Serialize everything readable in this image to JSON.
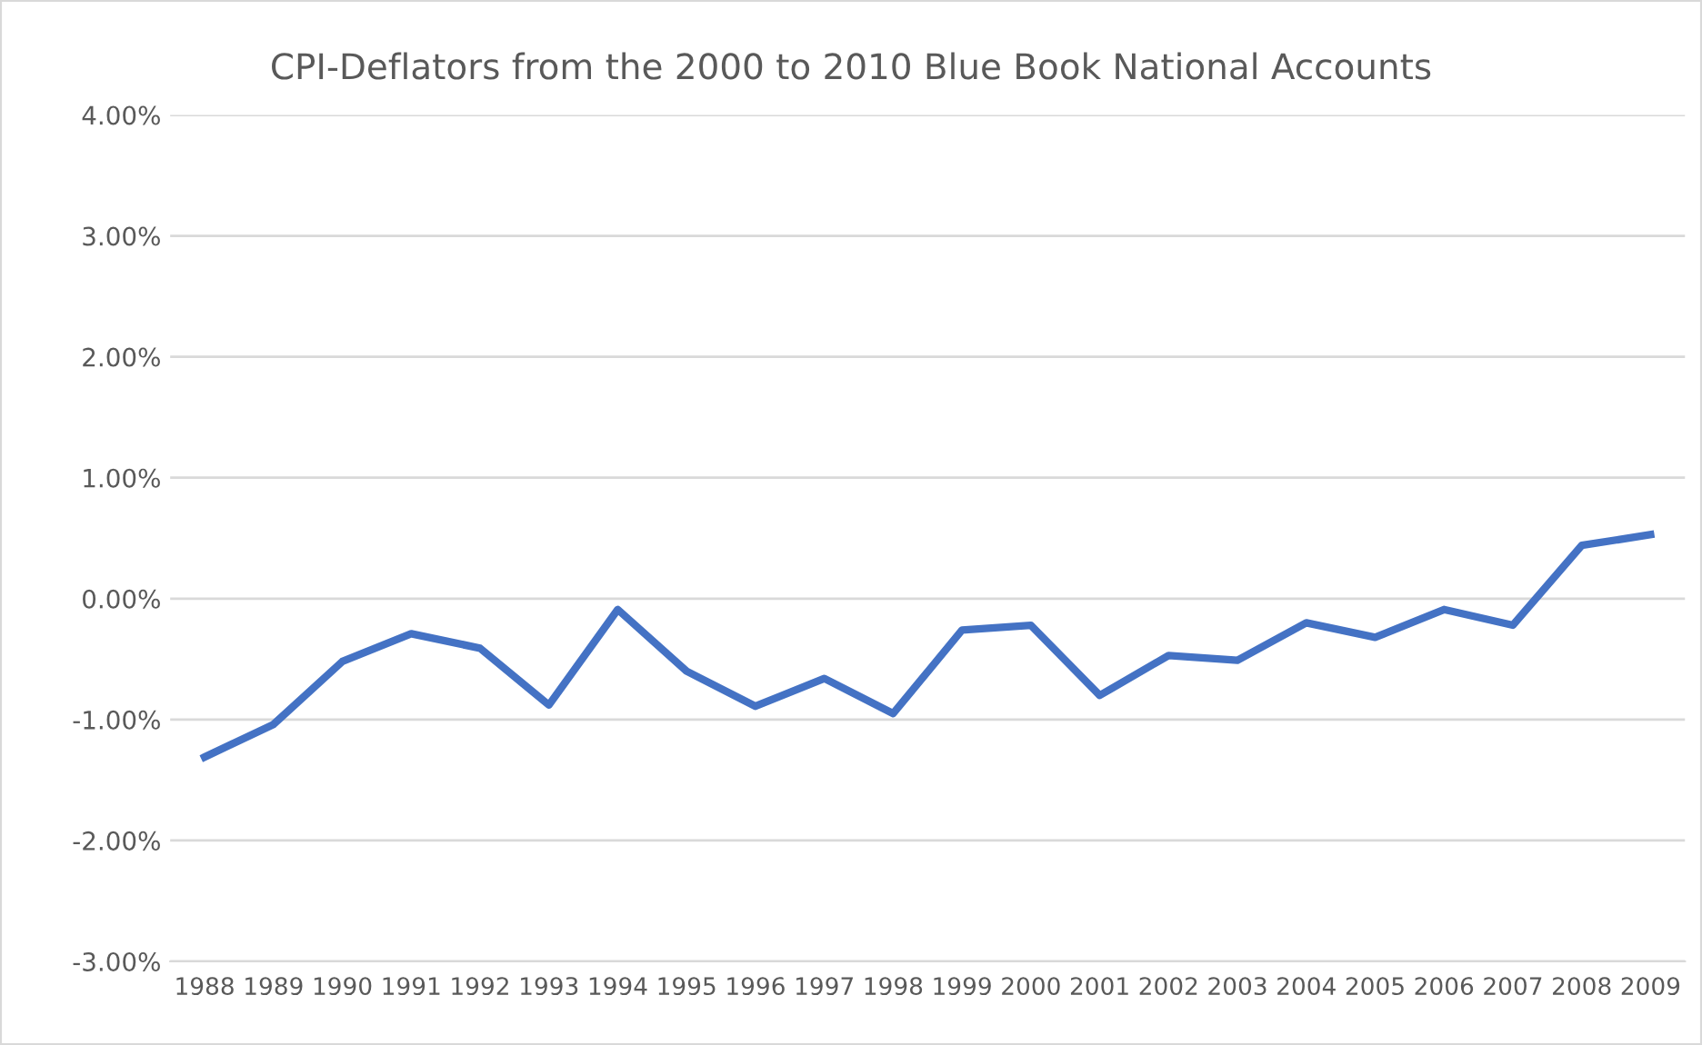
{
  "chart_data": {
    "type": "line",
    "title": "CPI-Deflators from the 2000 to 2010 Blue Book National Accounts",
    "categories": [
      "1988",
      "1989",
      "1990",
      "1991",
      "1992",
      "1993",
      "1994",
      "1995",
      "1996",
      "1997",
      "1998",
      "1999",
      "2000",
      "2001",
      "2002",
      "2003",
      "2004",
      "2005",
      "2006",
      "2007",
      "2008",
      "2009"
    ],
    "series": [
      {
        "color": "#4472c4",
        "values": [
          -1.31,
          -1.04,
          -0.52,
          -0.29,
          -0.41,
          -0.88,
          -0.09,
          -0.6,
          -0.89,
          -0.66,
          -0.95,
          -0.26,
          -0.22,
          -0.8,
          -0.47,
          -0.51,
          -0.2,
          -0.32,
          -0.09,
          -0.22,
          0.44,
          0.53
        ]
      }
    ],
    "ylim": [
      -3,
      4
    ],
    "yticks": [
      {
        "value": -3,
        "label": "-3.00%"
      },
      {
        "value": -2,
        "label": "-2.00%"
      },
      {
        "value": -1,
        "label": "-1.00%"
      },
      {
        "value": 0,
        "label": "0.00%"
      },
      {
        "value": 1,
        "label": "1.00%"
      },
      {
        "value": 2,
        "label": "2.00%"
      },
      {
        "value": 3,
        "label": "3.00%"
      },
      {
        "value": 4,
        "label": "4.00%"
      }
    ],
    "grid": "y",
    "legend": false,
    "marker": "none",
    "line_style": "solid"
  }
}
